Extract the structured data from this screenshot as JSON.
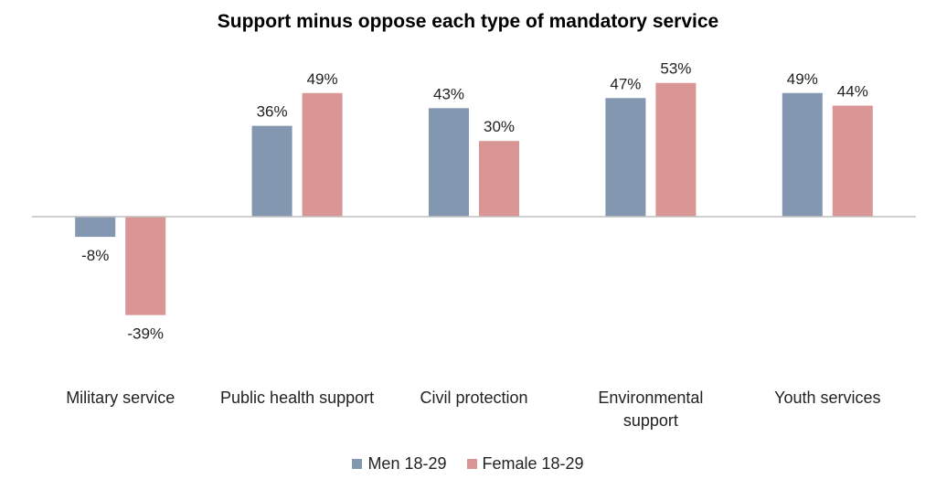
{
  "chart_data": {
    "type": "bar",
    "title": "Support minus oppose each type of mandatory service",
    "categories": [
      "Military service",
      "Public health support",
      "Civil protection",
      "Environmental\nsupport",
      "Youth services"
    ],
    "series": [
      {
        "name": "Men 18-29",
        "values": [
          -8,
          36,
          43,
          47,
          49
        ],
        "labels": [
          "-8%",
          "36%",
          "43%",
          "47%",
          "49%"
        ],
        "color": "#8497b0"
      },
      {
        "name": "Female 18-29",
        "values": [
          -39,
          49,
          30,
          53,
          44
        ],
        "labels": [
          "-39%",
          "49%",
          "30%",
          "53%",
          "44%"
        ],
        "color": "#d99694"
      }
    ],
    "ylim": [
      -50,
      60
    ],
    "grid": false,
    "legend": "bottom",
    "axis_color": "#bfbfbf"
  }
}
